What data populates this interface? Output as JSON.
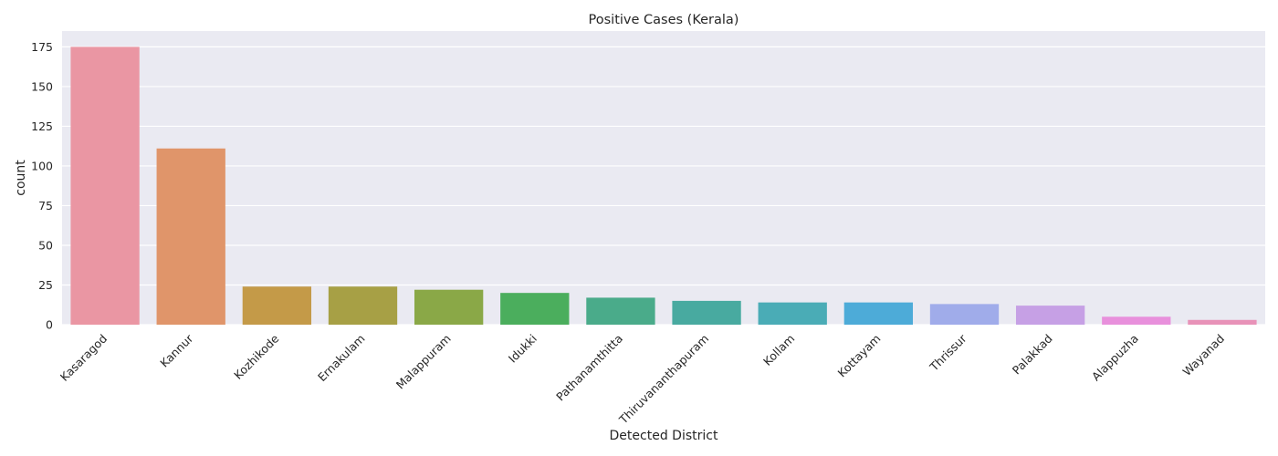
{
  "chart_data": {
    "type": "bar",
    "title": "Positive Cases (Kerala)",
    "xlabel": "Detected District",
    "ylabel": "count",
    "ylim": [
      0,
      185
    ],
    "yticks": [
      0,
      25,
      50,
      75,
      100,
      125,
      150,
      175
    ],
    "grid": true,
    "categories": [
      "Kasaragod",
      "Kannur",
      "Kozhikode",
      "Ernakulam",
      "Malappuram",
      "Idukki",
      "Pathanamthitta",
      "Thiruvananthapuram",
      "Kollam",
      "Kottayam",
      "Thrissur",
      "Palakkad",
      "Alappuzha",
      "Wayanad"
    ],
    "values": [
      175,
      111,
      24,
      24,
      22,
      20,
      17,
      15,
      14,
      14,
      13,
      12,
      5,
      3
    ],
    "colors": [
      "#ea96a3",
      "#e0956a",
      "#c49a48",
      "#a7a045",
      "#8aa847",
      "#4bae5d",
      "#4aab8a",
      "#48aaa0",
      "#4aacb6",
      "#4dabd8",
      "#a0acea",
      "#c6a0e5",
      "#e890dc",
      "#e892b8"
    ],
    "background": "#eaeaf2",
    "grid_color": "#ffffff"
  }
}
